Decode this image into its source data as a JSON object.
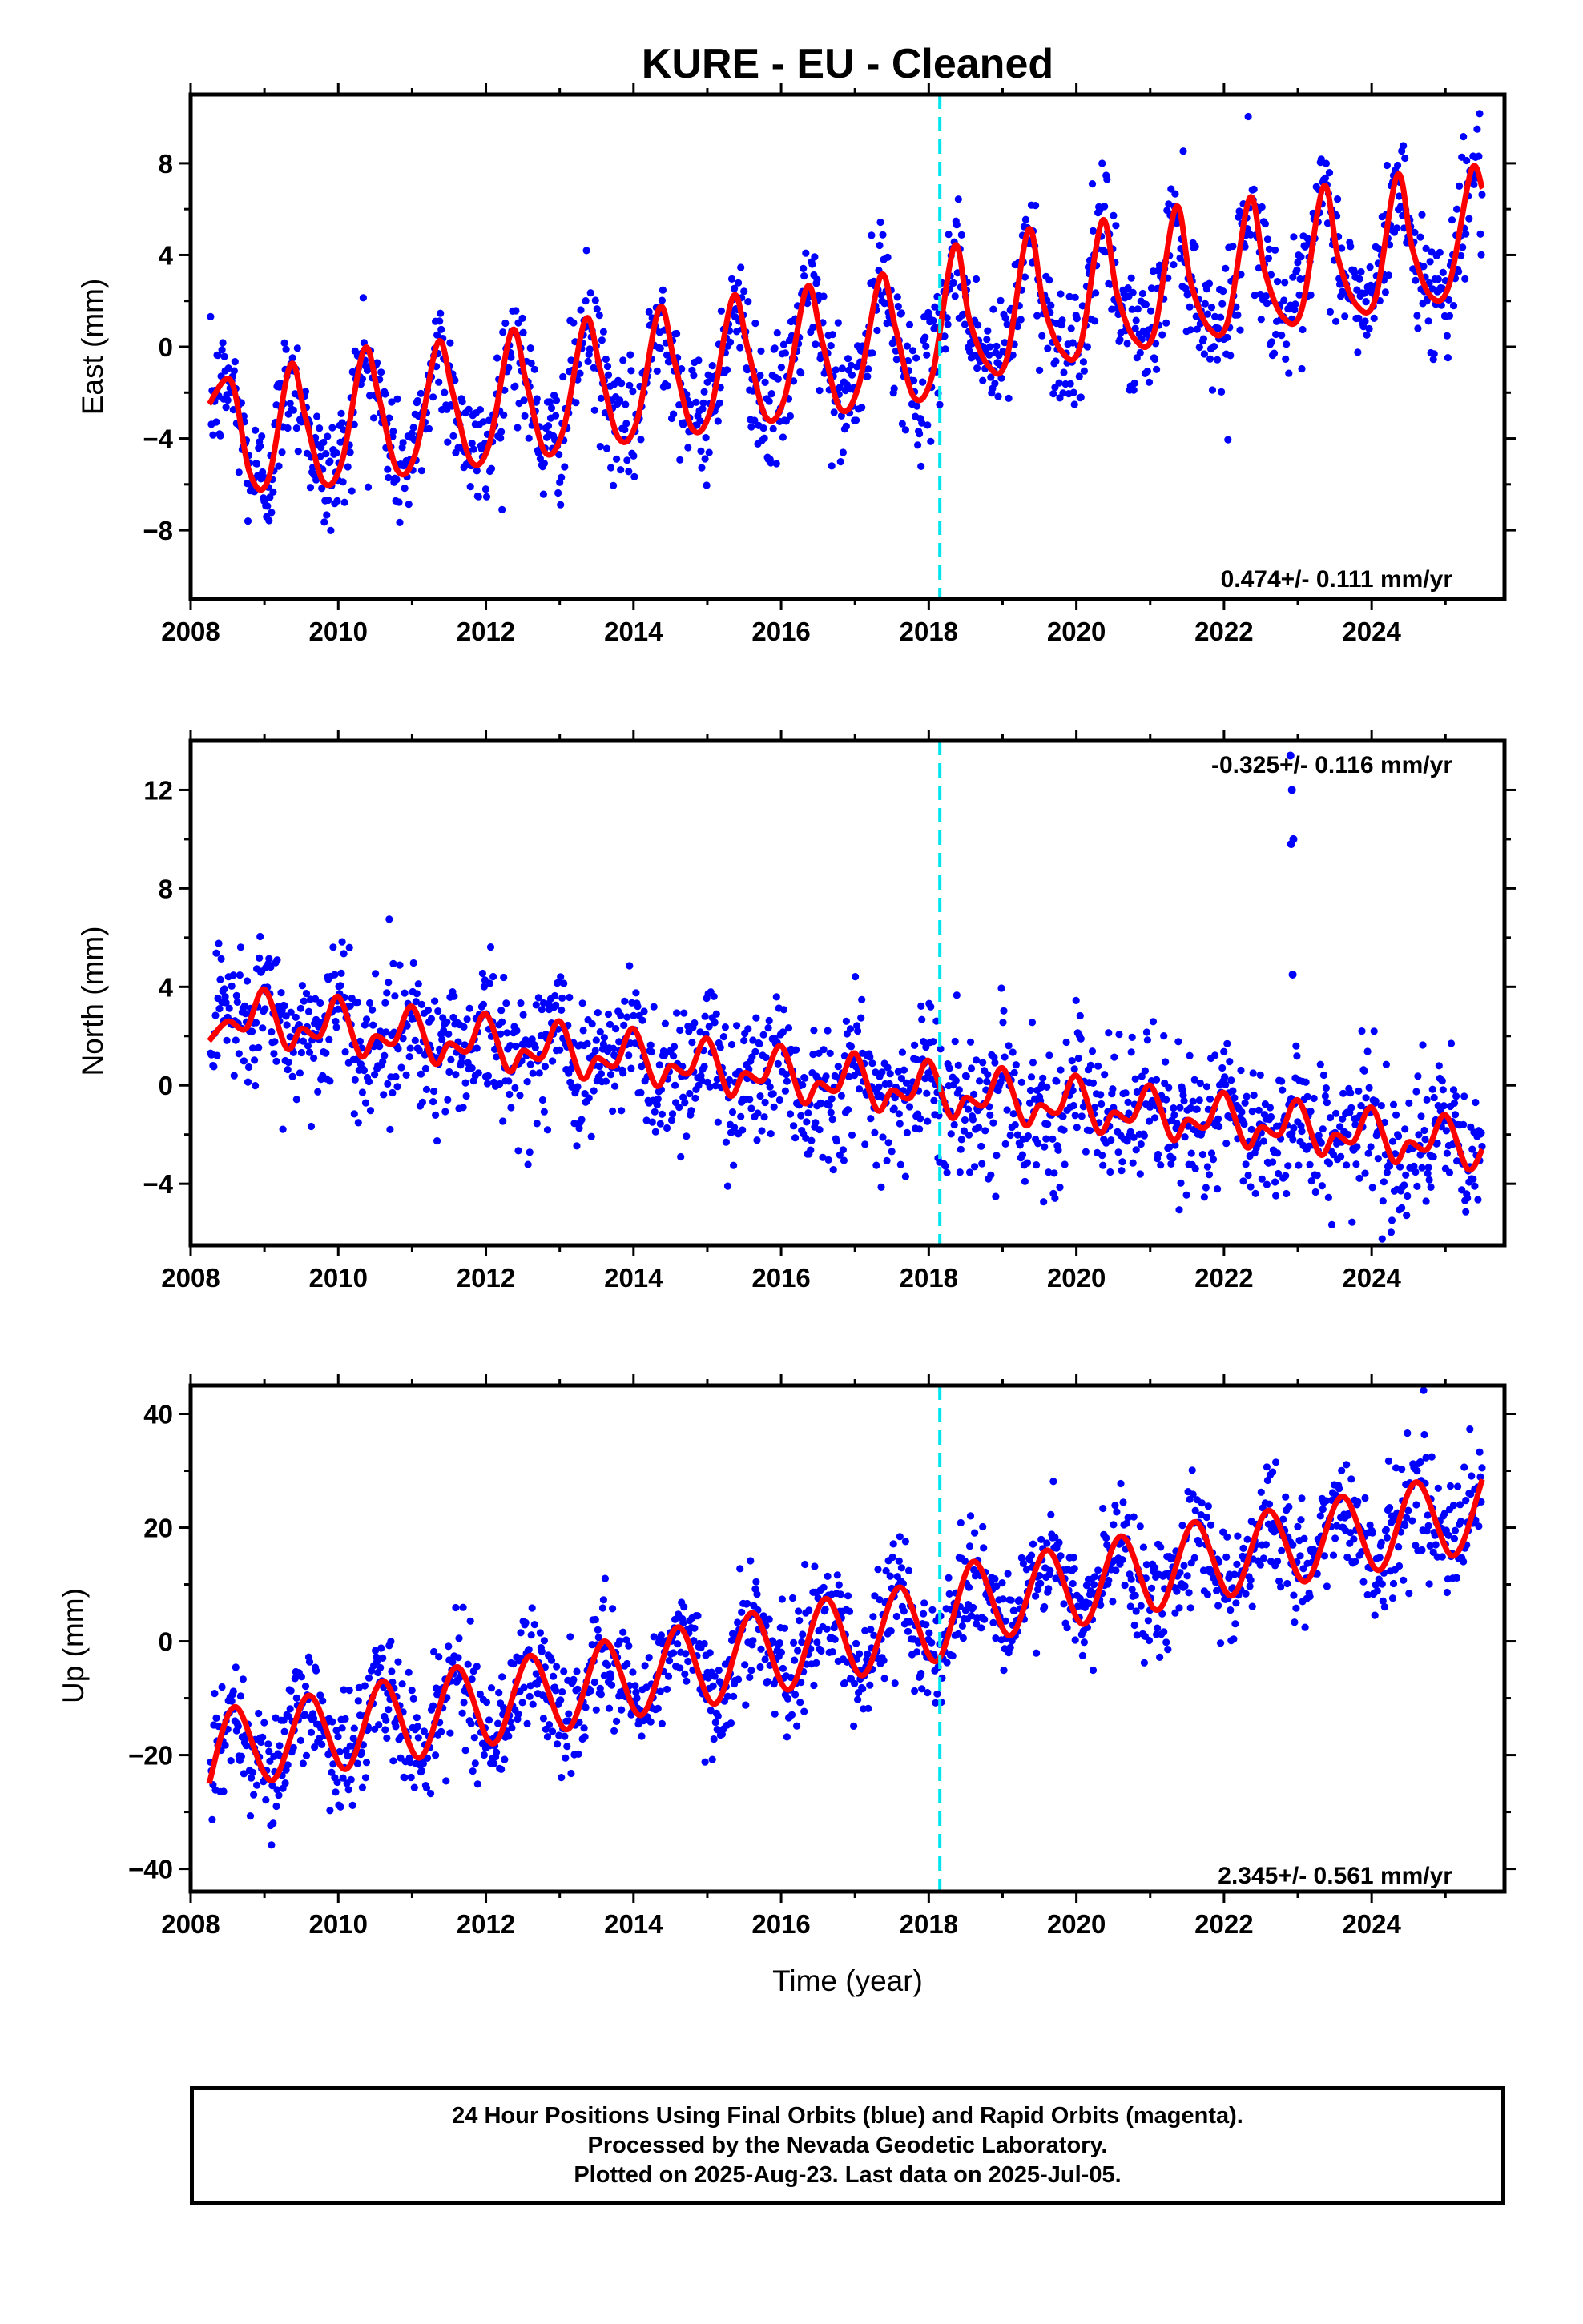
{
  "colors": {
    "points": "#0000ff",
    "model": "#ff0000",
    "marker": "#00e5ee",
    "frame": "#000000"
  },
  "chart_data": [
    {
      "type": "scatter",
      "title": "KURE  - EU - Cleaned",
      "ylabel": "East (mm)",
      "xlabel": "",
      "xlim": [
        2008.0,
        2025.8
      ],
      "ylim": [
        -11.0,
        11.0
      ],
      "xticks": [
        2008,
        2010,
        2012,
        2014,
        2016,
        2018,
        2020,
        2022,
        2024
      ],
      "yticks": [
        -8,
        -4,
        0,
        4,
        8
      ],
      "ytick_labels": [
        "−8",
        "−4",
        "0",
        "4",
        "8"
      ],
      "rate_label": "0.474+/- 0.111 mm/yr",
      "rate_position": "bottom-right",
      "marker_line_x": 2018.15,
      "series": [
        {
          "kind": "model",
          "x": [
            2008.25,
            2008.55,
            2008.8,
            2009.05,
            2009.35,
            2009.55,
            2009.8,
            2010.05,
            2010.35,
            2010.55,
            2010.8,
            2011.05,
            2011.35,
            2011.55,
            2011.8,
            2012.05,
            2012.35,
            2012.55,
            2012.8,
            2013.05,
            2013.35,
            2013.55,
            2013.8,
            2014.05,
            2014.35,
            2014.55,
            2014.8,
            2015.05,
            2015.35,
            2015.55,
            2015.8,
            2016.05,
            2016.35,
            2016.55,
            2016.8,
            2017.05,
            2017.35,
            2017.55,
            2017.8,
            2018.05,
            2018.35,
            2018.55,
            2018.8,
            2019.05,
            2019.35,
            2019.55,
            2019.8,
            2020.05,
            2020.35,
            2020.55,
            2020.8,
            2021.05,
            2021.35,
            2021.55,
            2021.8,
            2022.05,
            2022.35,
            2022.55,
            2022.8,
            2023.05,
            2023.35,
            2023.55,
            2023.8,
            2024.05,
            2024.35,
            2024.55,
            2024.8,
            2025.05,
            2025.35,
            2025.5
          ],
          "y": [
            -2.5,
            -1.5,
            -5.5,
            -5.8,
            -0.8,
            -3.0,
            -5.9,
            -5.0,
            -0.1,
            -2.2,
            -5.4,
            -4.6,
            0.2,
            -2.0,
            -5.0,
            -4.2,
            0.7,
            -1.6,
            -4.6,
            -3.6,
            1.2,
            -1.0,
            -4.0,
            -3.2,
            1.7,
            -0.6,
            -3.6,
            -2.7,
            2.2,
            -0.1,
            -3.1,
            -2.2,
            2.6,
            0.3,
            -2.7,
            -1.7,
            3.1,
            0.8,
            -2.2,
            -1.2,
            4.4,
            1.2,
            -0.8,
            -0.6,
            5.1,
            1.9,
            -0.2,
            0.0,
            5.5,
            2.3,
            0.3,
            0.6,
            6.1,
            2.8,
            0.8,
            1.1,
            6.5,
            3.3,
            1.3,
            1.6,
            7.0,
            3.8,
            1.8,
            2.1,
            7.5,
            4.3,
            2.2,
            2.7,
            7.7,
            6.9
          ]
        }
      ]
    },
    {
      "type": "scatter",
      "title": "",
      "ylabel": "North (mm)",
      "xlabel": "",
      "xlim": [
        2008.0,
        2025.8
      ],
      "ylim": [
        -6.5,
        14.0
      ],
      "xticks": [
        2008,
        2010,
        2012,
        2014,
        2016,
        2018,
        2020,
        2022,
        2024
      ],
      "yticks": [
        -4,
        0,
        4,
        8,
        12
      ],
      "ytick_labels": [
        "−4",
        "0",
        "4",
        "8",
        "12"
      ],
      "rate_label": "-0.325+/- 0.116 mm/yr",
      "rate_position": "top-right",
      "marker_line_x": 2018.15,
      "outliers": {
        "x": [
          2022.9,
          2022.92,
          2022.94,
          2022.91,
          2022.93
        ],
        "y": [
          13.4,
          12.0,
          10.0,
          9.8,
          4.5
        ]
      },
      "series": [
        {
          "kind": "model",
          "x": [
            2008.25,
            2008.5,
            2008.75,
            2009.0,
            2009.3,
            2009.5,
            2009.75,
            2010.0,
            2010.3,
            2010.5,
            2010.75,
            2011.0,
            2011.3,
            2011.5,
            2011.75,
            2012.0,
            2012.3,
            2012.5,
            2012.75,
            2013.0,
            2013.3,
            2013.5,
            2013.75,
            2014.0,
            2014.3,
            2014.5,
            2014.75,
            2015.0,
            2015.3,
            2015.5,
            2015.75,
            2016.0,
            2016.3,
            2016.5,
            2016.75,
            2017.0,
            2017.3,
            2017.5,
            2017.75,
            2018.0,
            2018.3,
            2018.5,
            2018.75,
            2019.0,
            2019.3,
            2019.5,
            2019.75,
            2020.0,
            2020.3,
            2020.5,
            2020.75,
            2021.0,
            2021.3,
            2021.5,
            2021.75,
            2022.0,
            2022.3,
            2022.5,
            2022.75,
            2023.0,
            2023.3,
            2023.5,
            2023.75,
            2024.0,
            2024.3,
            2024.5,
            2024.75,
            2025.0,
            2025.3,
            2025.5
          ],
          "y": [
            1.8,
            2.6,
            2.3,
            3.9,
            1.5,
            2.3,
            2.0,
            3.6,
            1.2,
            2.0,
            1.7,
            3.2,
            0.9,
            1.7,
            1.4,
            2.9,
            0.6,
            1.4,
            1.1,
            2.6,
            0.3,
            1.1,
            0.8,
            2.3,
            0.0,
            0.8,
            0.5,
            1.9,
            -0.4,
            0.5,
            0.2,
            1.6,
            -0.7,
            0.1,
            -0.2,
            1.3,
            -1.0,
            -0.2,
            -0.5,
            1.0,
            -1.3,
            -0.5,
            -0.8,
            0.7,
            -1.6,
            -0.8,
            -1.1,
            0.4,
            -1.9,
            -1.1,
            -1.4,
            0.0,
            -2.2,
            -1.4,
            -1.7,
            -0.3,
            -2.5,
            -1.7,
            -2.0,
            -0.6,
            -2.8,
            -2.0,
            -2.3,
            -0.9,
            -3.1,
            -2.3,
            -2.6,
            -1.2,
            -3.4,
            -2.6
          ]
        }
      ]
    },
    {
      "type": "scatter",
      "title": "",
      "ylabel": "Up (mm)",
      "xlabel": "Time (year)",
      "xlim": [
        2008.0,
        2025.8
      ],
      "ylim": [
        -44.0,
        45.0
      ],
      "xticks": [
        2008,
        2010,
        2012,
        2014,
        2016,
        2018,
        2020,
        2022,
        2024
      ],
      "yticks": [
        -40,
        -20,
        0,
        20,
        40
      ],
      "ytick_labels": [
        "−40",
        "−20",
        "0",
        "20",
        "40"
      ],
      "rate_label": "2.345+/- 0.561 mm/yr",
      "rate_position": "bottom-right",
      "marker_line_x": 2018.15,
      "series": [
        {
          "kind": "model",
          "x": [
            2008.25,
            2008.6,
            2009.1,
            2009.6,
            2010.1,
            2010.6,
            2011.1,
            2011.6,
            2012.1,
            2012.6,
            2013.1,
            2013.6,
            2014.1,
            2014.6,
            2015.1,
            2015.6,
            2016.1,
            2016.6,
            2017.1,
            2017.6,
            2018.1,
            2018.6,
            2019.1,
            2019.6,
            2020.1,
            2020.6,
            2021.1,
            2021.6,
            2022.1,
            2022.6,
            2023.1,
            2023.6,
            2024.1,
            2024.6,
            2025.1,
            2025.5
          ],
          "y": [
            -25.0,
            -11.5,
            -24.5,
            -9.5,
            -22.5,
            -7.0,
            -20.5,
            -4.5,
            -18.0,
            -2.5,
            -15.5,
            0.0,
            -13.0,
            2.5,
            -11.0,
            5.0,
            -8.5,
            7.5,
            -6.0,
            9.5,
            -3.5,
            14.0,
            1.0,
            16.0,
            3.0,
            18.5,
            5.5,
            21.0,
            8.0,
            23.0,
            10.5,
            25.5,
            12.5,
            28.0,
            15.0,
            28.5
          ]
        }
      ]
    }
  ],
  "footer": {
    "lines": [
      "24 Hour Positions Using Final Orbits (blue) and Rapid Orbits (magenta).",
      "Processed by the Nevada Geodetic Laboratory.",
      "Plotted on 2025-Aug-23. Last data on 2025-Jul-05."
    ]
  }
}
